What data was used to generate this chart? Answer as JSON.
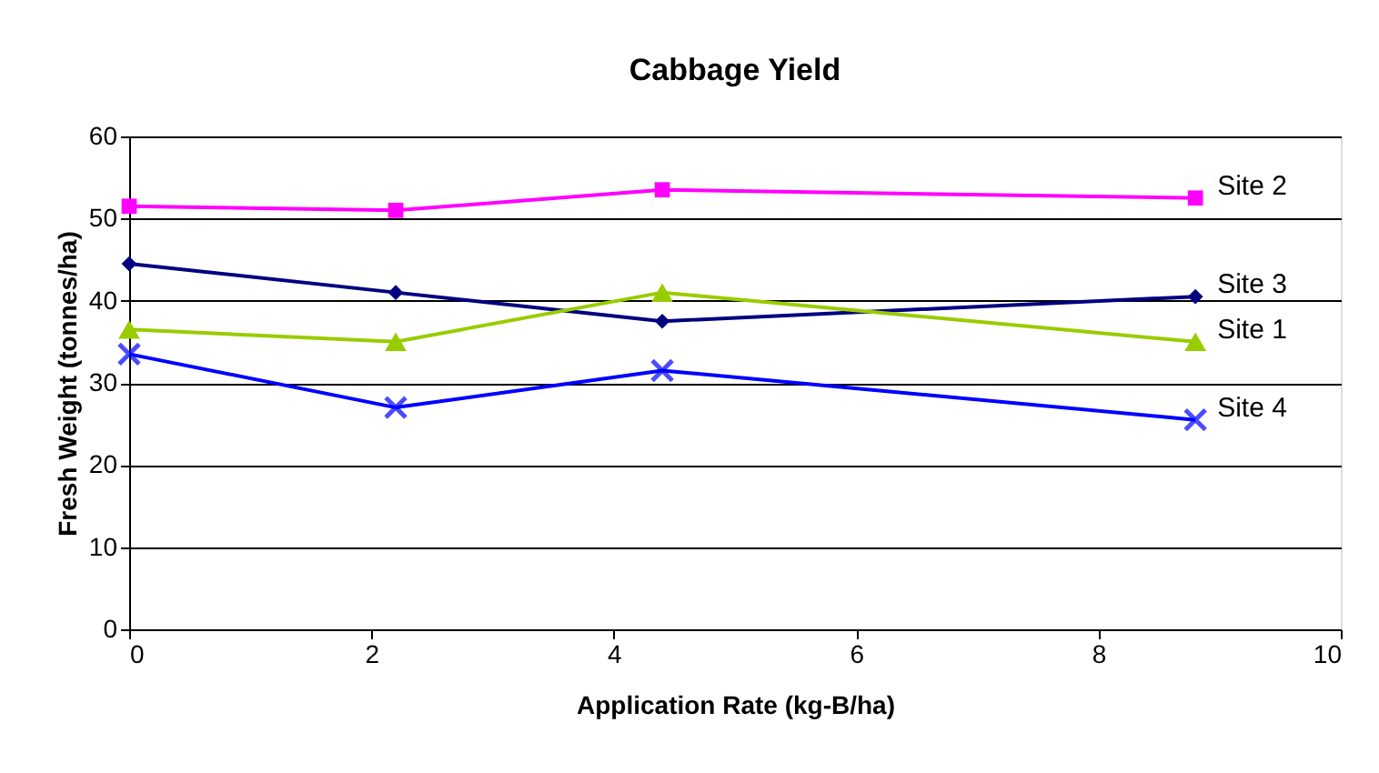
{
  "chart_data": {
    "type": "line",
    "title": "Cabbage Yield",
    "xlabel": "Application Rate (kg-B/ha)",
    "ylabel": "Fresh Weight (tonnes/ha)",
    "x": [
      0,
      2.2,
      4.4,
      8.8
    ],
    "series": [
      {
        "name": "Site 2",
        "color": "#ff00ff",
        "marker": "square",
        "values": [
          51.5,
          51,
          53.5,
          52.5
        ]
      },
      {
        "name": "Site 3",
        "color": "#000080",
        "marker": "diamond",
        "values": [
          44.5,
          41,
          37.5,
          40.5
        ]
      },
      {
        "name": "Site 1",
        "color": "#99cc00",
        "marker": "triangle",
        "values": [
          36.5,
          35,
          41,
          35
        ]
      },
      {
        "name": "Site 4",
        "color": "#0000ff",
        "marker": "cross",
        "values": [
          33.5,
          27,
          31.5,
          25.5
        ]
      }
    ],
    "xlim": [
      0,
      10
    ],
    "xticks": [
      0,
      2,
      4,
      6,
      8,
      10
    ],
    "ylim": [
      0,
      60
    ],
    "yticks": [
      0,
      10,
      20,
      30,
      40,
      50,
      60
    ],
    "grid": "y",
    "legend": false,
    "line_style": "solid"
  }
}
